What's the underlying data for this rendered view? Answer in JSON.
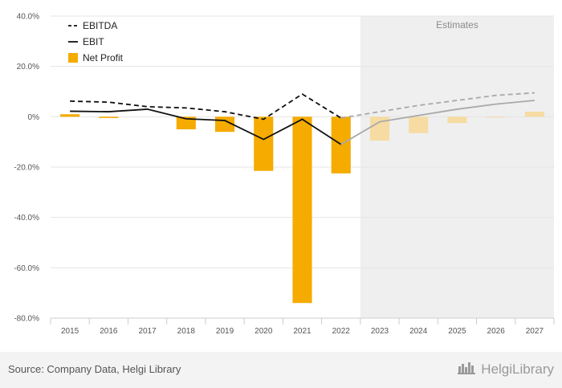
{
  "chart_data": {
    "type": "bar+line",
    "categories": [
      "2015",
      "2016",
      "2017",
      "2018",
      "2019",
      "2020",
      "2021",
      "2022",
      "2023",
      "2024",
      "2025",
      "2026",
      "2027"
    ],
    "estimate_start_index": 8,
    "estimates_label": "Estimates",
    "series": [
      {
        "name": "EBITDA",
        "kind": "line",
        "style": "dashed",
        "values": [
          6.2,
          5.8,
          4.0,
          3.5,
          2.0,
          -1.0,
          9.0,
          -0.5,
          2.0,
          4.5,
          6.5,
          8.5,
          9.5
        ]
      },
      {
        "name": "EBIT",
        "kind": "line",
        "style": "solid",
        "values": [
          2.2,
          2.0,
          3.0,
          -0.8,
          -1.5,
          -9.0,
          -1.0,
          -11.0,
          -2.0,
          0.5,
          3.0,
          5.0,
          6.5
        ]
      },
      {
        "name": "Net Profit",
        "kind": "bar",
        "values": [
          1.0,
          -0.5,
          0.0,
          -5.0,
          -6.0,
          -21.5,
          -74.0,
          -22.5,
          -9.5,
          -6.5,
          -2.5,
          -0.3,
          2.0
        ]
      }
    ],
    "ylim": [
      -80,
      40
    ],
    "yticks": [
      40,
      20,
      0,
      -20,
      -40,
      -60,
      -80
    ],
    "ytick_labels": [
      "40.0%",
      "20.0%",
      "0%",
      "-20.0%",
      "-40.0%",
      "-60.0%",
      "-80.0%"
    ],
    "legend_position": "top-left",
    "colors": {
      "bar": "#f5ab00",
      "bar_estimate": "#f6dca2",
      "line": "#111111",
      "line_estimate": "#a9a9a9",
      "estimate_bg": "#efefef"
    }
  },
  "footer": {
    "source": "Source: Company Data, Helgi Library",
    "brand": "HelgiLibrary"
  }
}
